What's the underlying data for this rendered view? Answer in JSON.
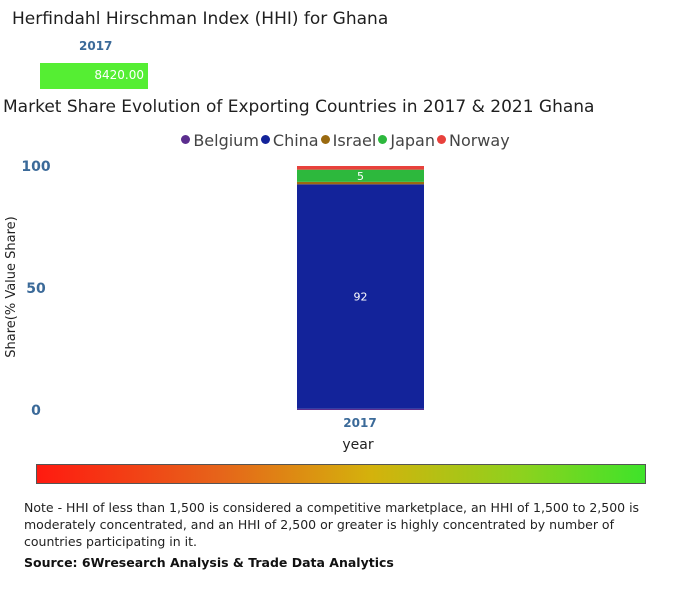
{
  "hhi": {
    "title": "Herfindahl Hirschman Index (HHI) for Ghana",
    "year": "2017",
    "value": "8420.00"
  },
  "chart_data": {
    "type": "bar",
    "stacked": true,
    "title": "Market Share Evolution of Exporting Countries in 2017 & 2021 Ghana",
    "xlabel": "year",
    "ylabel": "Share(% Value Share)",
    "categories": [
      "2017"
    ],
    "ylim": [
      0,
      100
    ],
    "yticks": [
      "0",
      "50",
      "100"
    ],
    "series": [
      {
        "name": "Belgium",
        "color": "#5b2d8e",
        "values": [
          0.5
        ],
        "label": ""
      },
      {
        "name": "China",
        "color": "#13239a",
        "values": [
          92
        ],
        "label": "92"
      },
      {
        "name": "Israel",
        "color": "#9a6a10",
        "values": [
          1
        ],
        "label": ""
      },
      {
        "name": "Japan",
        "color": "#2db83d",
        "values": [
          5
        ],
        "label": "5"
      },
      {
        "name": "Norway",
        "color": "#e8413c",
        "values": [
          1.5
        ],
        "label": ""
      }
    ]
  },
  "note": "Note - HHI of less than 1,500 is considered a competitive marketplace, an HHI of 1,500 to 2,500 is moderately concentrated, and an HHI of 2,500 or greater is highly concentrated by number of countries participating in it.",
  "source": "Source: 6Wresearch Analysis & Trade Data Analytics"
}
